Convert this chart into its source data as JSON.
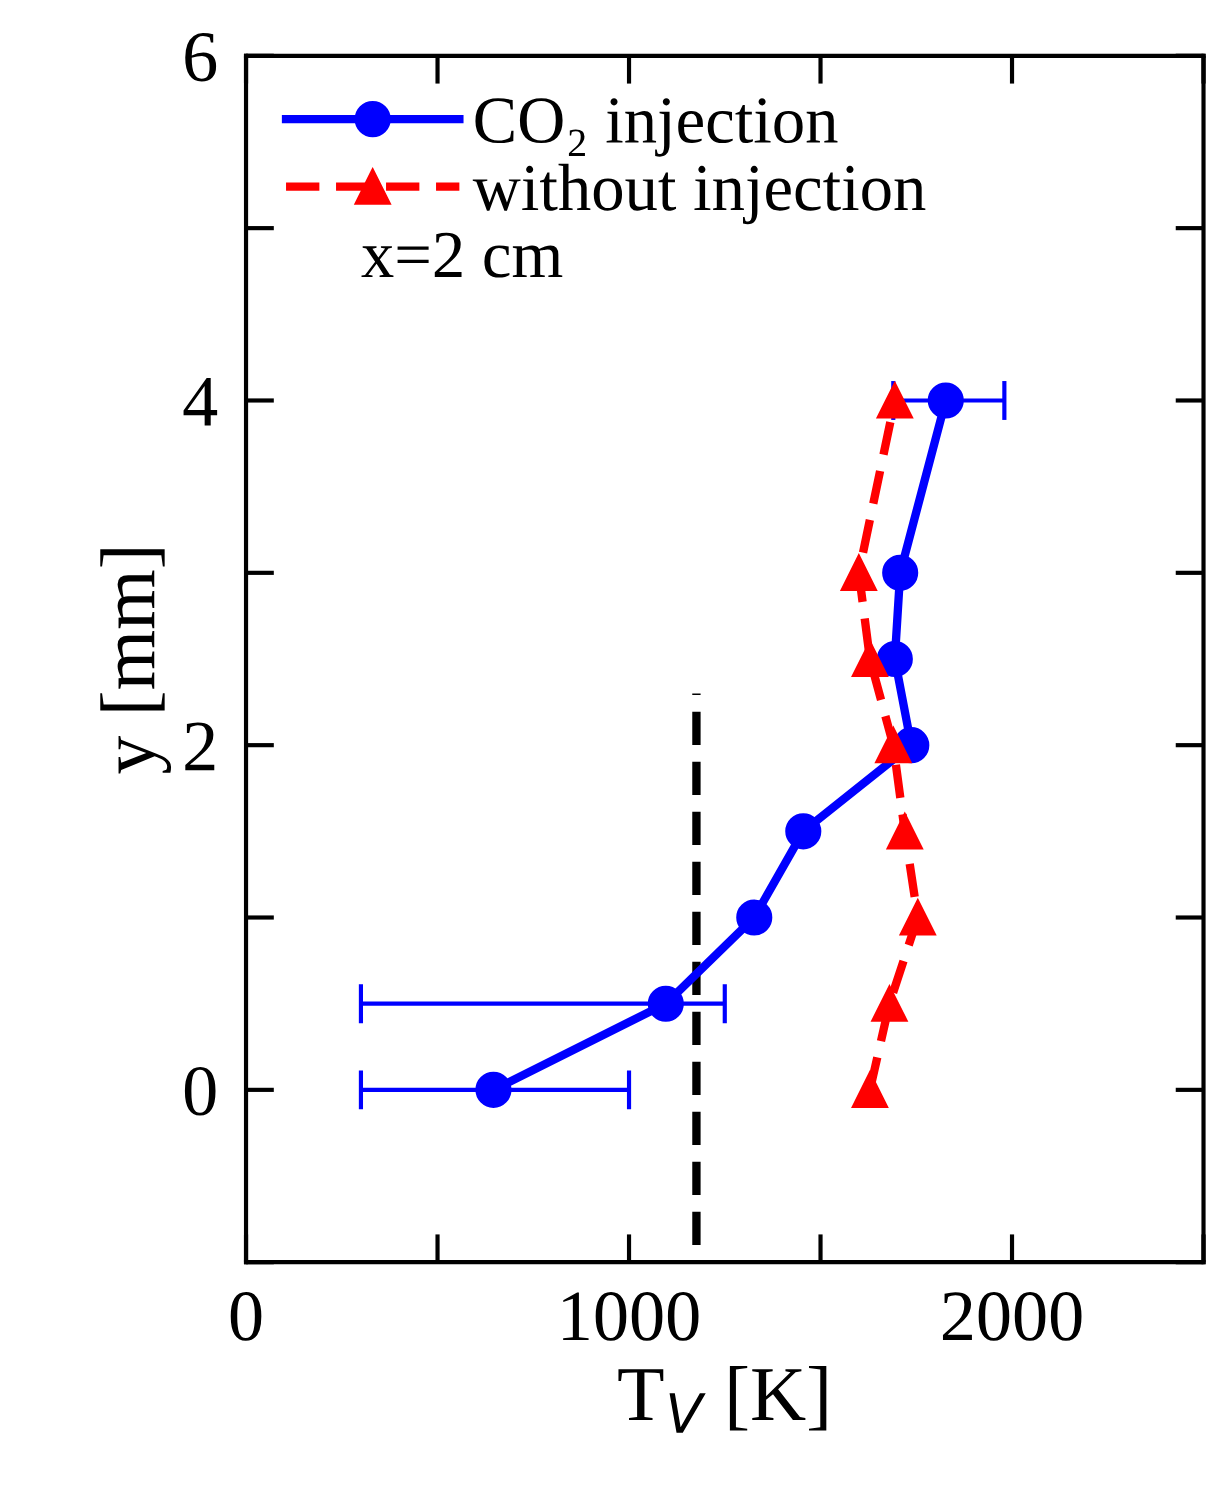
{
  "chart_data": {
    "type": "line",
    "xlabel": "T$_{V}$ [K]",
    "ylabel": "y [mm]",
    "xlim": [
      0,
      2500
    ],
    "xticks": [
      0,
      {
        "value": 500,
        "label": null
      },
      1000,
      {
        "value": 1500,
        "label": null
      },
      2000,
      {
        "value": 2500,
        "label": null
      }
    ],
    "ylim": [
      -1,
      6
    ],
    "yticks": [
      {
        "value": -1,
        "label": null
      },
      0,
      {
        "value": 1,
        "label": null
      },
      2,
      {
        "value": 3,
        "label": null
      },
      4,
      {
        "value": 5,
        "label": null
      },
      6
    ],
    "grid": false,
    "legend": "top left",
    "annotations": [
      "x=2 cm"
    ],
    "series": [
      {
        "name": "CO₂ injection",
        "color": "#0000ff",
        "marker": "circle",
        "line_style": "solid",
        "x": [
          646,
          1096,
          1327,
          1455,
          1737,
          1694,
          1708,
          1827
        ],
        "values": [
          0,
          0.5,
          1,
          1.5,
          2,
          2.5,
          3,
          4
        ],
        "xerrors": [
          [
            300,
            1000
          ],
          [
            300,
            1250
          ],
          null,
          null,
          null,
          null,
          null,
          [
            1690,
            1980
          ]
        ]
      },
      {
        "name": "without injection",
        "color": "#ff0000",
        "marker": "triangle",
        "line_style": "dashed",
        "x": [
          1629,
          1680,
          1754,
          1720,
          1690,
          1629,
          1600,
          1694
        ],
        "values": [
          0,
          0.5,
          1,
          1.5,
          2,
          2.5,
          3,
          4
        ]
      },
      {
        "color": "#000000",
        "marker": "none",
        "line_style": "dashed",
        "x": [
          1176,
          1176
        ],
        "values": [
          -0.9,
          2.3
        ]
      }
    ]
  }
}
